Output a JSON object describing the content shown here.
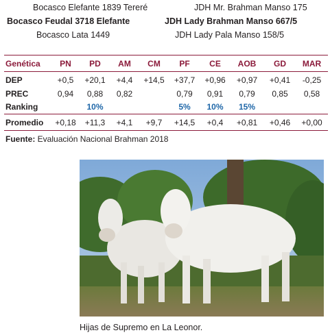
{
  "pedigree": {
    "left": [
      "Bocasco Elefante 1839 Tereré",
      "Bocasco Feudal 3718 Elefante",
      "Bocasco Lata 1449"
    ],
    "right": [
      "JDH Mr. Brahman Manso 175",
      "JDH Lady Brahman Manso 667/5",
      "JDH Lady Pala Manso 158/5"
    ]
  },
  "table": {
    "columns": [
      "Genética",
      "PN",
      "PD",
      "AM",
      "CM",
      "PF",
      "CE",
      "AOB",
      "GD",
      "MAR"
    ],
    "rows": [
      {
        "label": "DEP",
        "values": [
          "+0,5",
          "+20,1",
          "+4,4",
          "+14,5",
          "+37,7",
          "+0,96",
          "+0,97",
          "+0,41",
          "-0,25"
        ]
      },
      {
        "label": "PREC",
        "values": [
          "0,94",
          "0,88",
          "0,82",
          "",
          "0,79",
          "0,91",
          "0,79",
          "0,85",
          "0,58"
        ]
      },
      {
        "label": "Ranking",
        "values": [
          "",
          "10%",
          "",
          "",
          "5%",
          "10%",
          "15%",
          "",
          ""
        ]
      }
    ],
    "average": {
      "label": "Promedio",
      "values": [
        "+0,18",
        "+11,3",
        "+4,1",
        "+9,7",
        "+14,5",
        "+0,4",
        "+0,81",
        "+0,46",
        "+0,00"
      ]
    }
  },
  "source": {
    "label": "Fuente:",
    "text": " Evaluación Nacional Brahman 2018"
  },
  "caption": "Hijas de Supremo en La Leonor.",
  "colors": {
    "accent": "#8b1a3a",
    "ranking": "#1f67a8"
  }
}
